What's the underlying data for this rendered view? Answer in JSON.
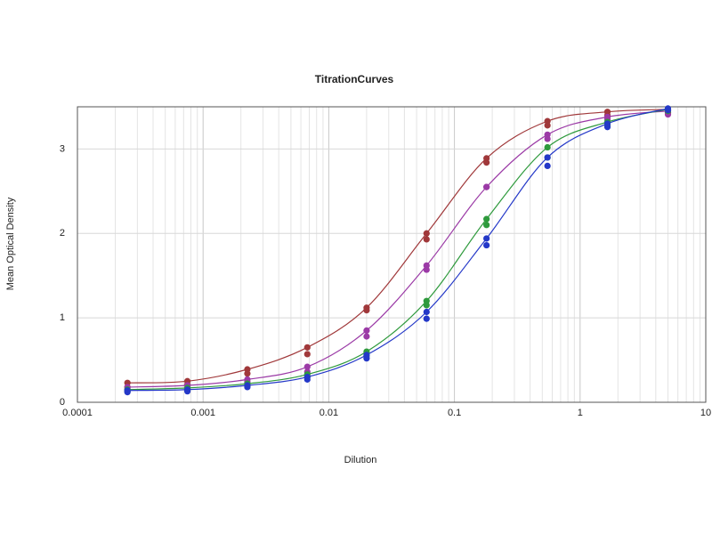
{
  "chart_data": {
    "type": "scatter",
    "title": "TitrationCurves",
    "x_label": "Dilution",
    "y_label": "Mean Optical Density",
    "x": [
      0.00025,
      0.00075,
      0.00225,
      0.00675,
      0.02,
      0.06,
      0.18,
      0.55,
      1.65,
      5
    ],
    "log_x": true,
    "grid": true,
    "xlim": [
      0.0001,
      10
    ],
    "xticks": [
      0.0001,
      0.001,
      0.01,
      0.1,
      1,
      10
    ],
    "ylim": [
      0,
      3.5
    ],
    "yticks": [
      0,
      1,
      2,
      3
    ],
    "series": [
      {
        "color": "#a0383a",
        "curve": true,
        "values": [
          0.23,
          0.25,
          0.39,
          0.65,
          1.12,
          2.0,
          2.89,
          3.33,
          3.44,
          3.47
        ]
      },
      {
        "color": "#a0383a",
        "curve": false,
        "values": [
          0.18,
          0.21,
          0.34,
          0.57,
          1.09,
          1.93,
          2.84,
          3.28,
          3.4,
          3.43
        ]
      },
      {
        "color": "#9b3aa6",
        "curve": true,
        "values": [
          0.18,
          0.2,
          0.27,
          0.42,
          0.85,
          1.62,
          2.55,
          3.17,
          3.38,
          3.45
        ]
      },
      {
        "color": "#9b3aa6",
        "curve": false,
        "values": [
          0.15,
          0.17,
          0.24,
          0.36,
          0.78,
          1.57,
          2.55,
          3.12,
          3.35,
          3.41
        ]
      },
      {
        "color": "#2e9a3c",
        "curve": true,
        "values": [
          0.15,
          0.17,
          0.22,
          0.33,
          0.6,
          1.2,
          2.17,
          3.02,
          3.32,
          3.47
        ]
      },
      {
        "color": "#2e9a3c",
        "curve": false,
        "values": [
          0.13,
          0.15,
          0.2,
          0.3,
          0.55,
          1.15,
          2.1,
          2.9,
          3.28,
          3.45
        ]
      },
      {
        "color": "#2438c8",
        "curve": true,
        "values": [
          0.14,
          0.15,
          0.2,
          0.3,
          0.56,
          1.07,
          1.94,
          2.9,
          3.3,
          3.48
        ]
      },
      {
        "color": "#2438c8",
        "curve": false,
        "values": [
          0.12,
          0.13,
          0.18,
          0.27,
          0.52,
          0.99,
          1.86,
          2.8,
          3.26,
          3.46
        ]
      }
    ]
  }
}
